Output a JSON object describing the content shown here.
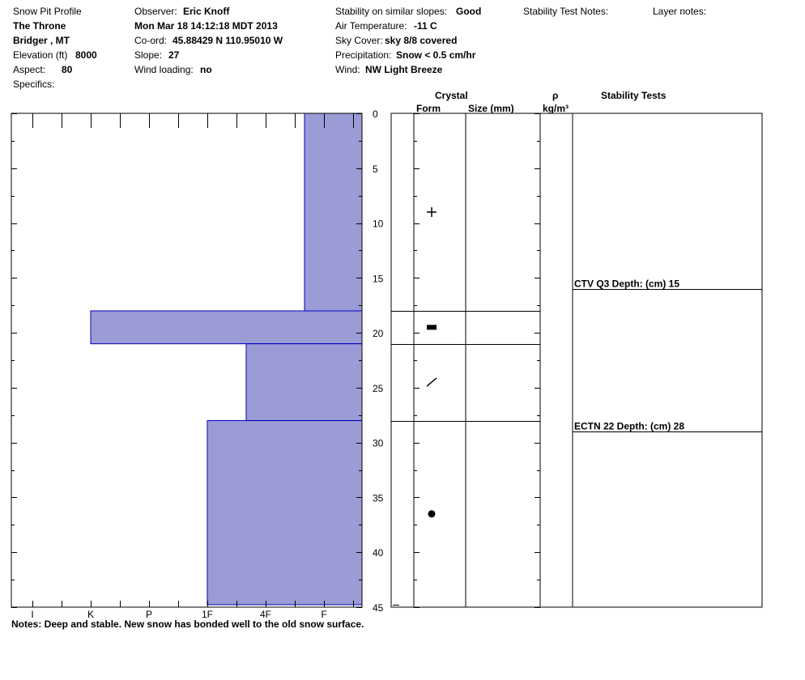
{
  "header": {
    "title": "Snow Pit Profile",
    "pit_name": "The Throne",
    "location": "Bridger , MT",
    "elevation_label": "Elevation (ft)",
    "elevation_value": "8000",
    "aspect_label": "Aspect:",
    "aspect_value": "80",
    "specifics_label": "Specifics:",
    "observer_label": "Observer:",
    "observer_value": "Eric Knoff",
    "datetime": "Mon Mar 18 14:12:18 MDT 2013",
    "coord_label": "Co-ord:",
    "coord_value": "45.88429 N 110.95010 W",
    "slope_label": "Slope:",
    "slope_value": "27",
    "wind_loading_label": "Wind loading:",
    "wind_loading_value": "no",
    "stability_label": "Stability on similar slopes:",
    "stability_value": "Good",
    "air_temp_label": "Air Temperature:",
    "air_temp_value": "-11 C",
    "sky_label": "Sky Cover:",
    "sky_value": "sky 8/8 covered",
    "precip_label": "Precipitation:",
    "precip_value": "Snow < 0.5 cm/hr",
    "wind_label": "Wind:",
    "wind_value": "NW Light Breeze",
    "stability_notes_label": "Stability Test Notes:",
    "layer_notes_label": "Layer notes:"
  },
  "columns": {
    "crystal": "Crystal",
    "form": "Form",
    "size": "Size (mm)",
    "density_symbol": "ρ",
    "density_unit": "kg/m³",
    "stability_tests": "Stability Tests"
  },
  "notes": "Notes:  Deep and stable. New snow has bonded well to the old snow surface.",
  "colors": {
    "hardness_fill": "#9b9bd6",
    "hardness_stroke": "#0000c0"
  },
  "chart_data": {
    "type": "bar",
    "orientation": "horizontal",
    "depth_axis": {
      "unit": "cm",
      "range": [
        0,
        45
      ],
      "ticks": [
        0,
        5,
        10,
        15,
        20,
        25,
        30,
        35,
        40,
        45
      ],
      "inverted": true
    },
    "hardness_axis": {
      "categories": [
        "I",
        "K",
        "P",
        "1F",
        "4F",
        "F"
      ],
      "direction": "hardest-left"
    },
    "layers": [
      {
        "top": 0,
        "bottom": 18,
        "hardness": "F"
      },
      {
        "top": 18,
        "bottom": 21,
        "hardness": "K"
      },
      {
        "top": 21,
        "bottom": 28,
        "hardness": "4F-"
      },
      {
        "top": 28,
        "bottom": 45,
        "hardness": "1F"
      }
    ],
    "hardness_levels": {
      "F": 1,
      "4F-": 2.66,
      "1F": 4,
      "K": 8
    },
    "layer_boundaries": [
      18,
      21,
      28
    ],
    "crystal_forms": [
      {
        "depth": 9,
        "symbol": "+",
        "name": "new-snow"
      },
      {
        "depth": 19.5,
        "symbol": "▬",
        "name": "melt-freeze-crust"
      },
      {
        "depth": 24.5,
        "symbol": "/",
        "name": "decomposing-fragments"
      },
      {
        "depth": 36.5,
        "symbol": "●",
        "name": "rounds"
      }
    ],
    "stability_tests": [
      {
        "label": "CTV Q3 Depth: (cm) 15",
        "depth": 16
      },
      {
        "label": "ECTN 22   Depth: (cm) 28",
        "depth": 29
      }
    ]
  }
}
